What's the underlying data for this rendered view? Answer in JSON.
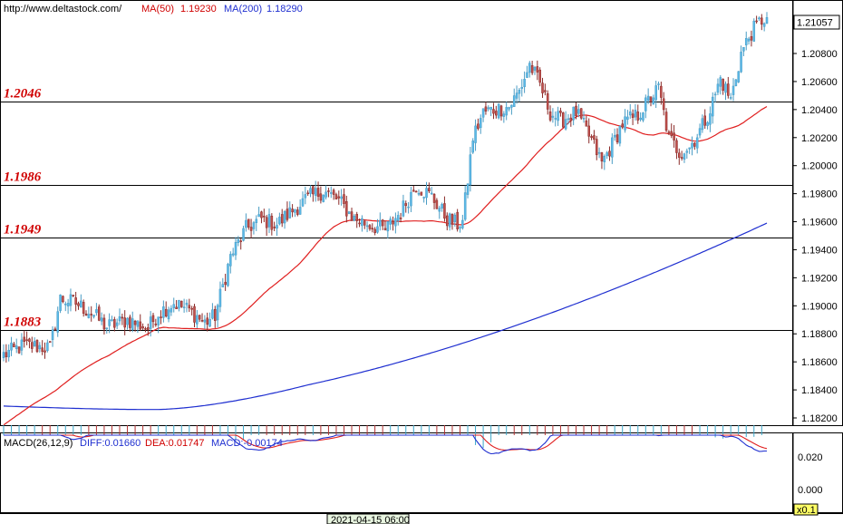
{
  "header": {
    "url": "http://www.deltastock.com/",
    "ma50_label": "MA(50)",
    "ma50_value": "1.19230",
    "ma200_label": "MA(200)",
    "ma200_value": "1.18290"
  },
  "levels": [
    {
      "label": "1.2046",
      "value": 1.2046
    },
    {
      "label": "1.1986",
      "value": 1.1986
    },
    {
      "label": "1.1949",
      "value": 1.1949
    },
    {
      "label": "1.1883",
      "value": 1.1883
    }
  ],
  "last_price": "1.21057",
  "price_ticks": [
    "1.20800",
    "1.20600",
    "1.20400",
    "1.20200",
    "1.20000",
    "1.19800",
    "1.19600",
    "1.19400",
    "1.19200",
    "1.19000",
    "1.18800",
    "1.18600",
    "1.18400",
    "1.18200"
  ],
  "macd_header": {
    "title": "MACD(26,12,9)",
    "diff": "DIFF:0.01660",
    "dea": "DEA:0.01747",
    "macd": "MACD:-0.00174"
  },
  "macd_ticks": [
    "0.020",
    "0.000"
  ],
  "time_label": "2021-04-15 06:00",
  "zoom_label": "x0.1",
  "colors": {
    "up": "#5bb9e8",
    "down": "#c0504d",
    "ma50": "#e02020",
    "ma200": "#1f2fd0",
    "level": "#d00000",
    "diff": "#1f2fd0",
    "dea": "#e02020",
    "hist_pos": "#3aa6c8",
    "hist_neg": "#b03030"
  },
  "chart_data": {
    "type": "candlestick",
    "symbol_source": "deltastock.com",
    "y_range": [
      1.181,
      1.2115
    ],
    "macd_range": [
      -0.015,
      0.028
    ],
    "levels": [
      1.2046,
      1.1986,
      1.1949,
      1.1883
    ],
    "last_price": 1.21057,
    "anchors": [
      [
        0,
        1.1865
      ],
      [
        8,
        1.1872
      ],
      [
        18,
        1.187
      ],
      [
        22,
        1.1905
      ],
      [
        28,
        1.1902
      ],
      [
        34,
        1.1895
      ],
      [
        40,
        1.1885
      ],
      [
        48,
        1.189
      ],
      [
        56,
        1.1884
      ],
      [
        60,
        1.1895
      ],
      [
        66,
        1.1902
      ],
      [
        72,
        1.1897
      ],
      [
        78,
        1.1888
      ],
      [
        82,
        1.1893
      ],
      [
        88,
        1.1935
      ],
      [
        94,
        1.1955
      ],
      [
        100,
        1.1962
      ],
      [
        106,
        1.1958
      ],
      [
        112,
        1.1968
      ],
      [
        118,
        1.1977
      ],
      [
        124,
        1.1982
      ],
      [
        130,
        1.1975
      ],
      [
        136,
        1.1962
      ],
      [
        142,
        1.1958
      ],
      [
        148,
        1.1954
      ],
      [
        154,
        1.1967
      ],
      [
        160,
        1.1986
      ],
      [
        166,
        1.1978
      ],
      [
        172,
        1.1962
      ],
      [
        176,
        1.1958
      ],
      [
        178,
        1.196
      ],
      [
        182,
        1.202
      ],
      [
        186,
        1.2038
      ],
      [
        190,
        1.204
      ],
      [
        196,
        1.2042
      ],
      [
        200,
        1.2053
      ],
      [
        204,
        1.2072
      ],
      [
        208,
        1.2058
      ],
      [
        212,
        1.2038
      ],
      [
        216,
        1.2032
      ],
      [
        222,
        1.2038
      ],
      [
        228,
        1.2018
      ],
      [
        232,
        1.2002
      ],
      [
        236,
        1.2015
      ],
      [
        240,
        1.203
      ],
      [
        246,
        1.2036
      ],
      [
        250,
        1.2046
      ],
      [
        254,
        1.2055
      ],
      [
        258,
        1.202
      ],
      [
        262,
        1.201
      ],
      [
        266,
        1.2013
      ],
      [
        270,
        1.2025
      ],
      [
        274,
        1.204
      ],
      [
        278,
        1.2062
      ],
      [
        282,
        1.2047
      ],
      [
        286,
        1.208
      ],
      [
        290,
        1.2095
      ],
      [
        294,
        1.2104
      ],
      [
        296,
        1.2106
      ]
    ],
    "candle_count": 297
  }
}
